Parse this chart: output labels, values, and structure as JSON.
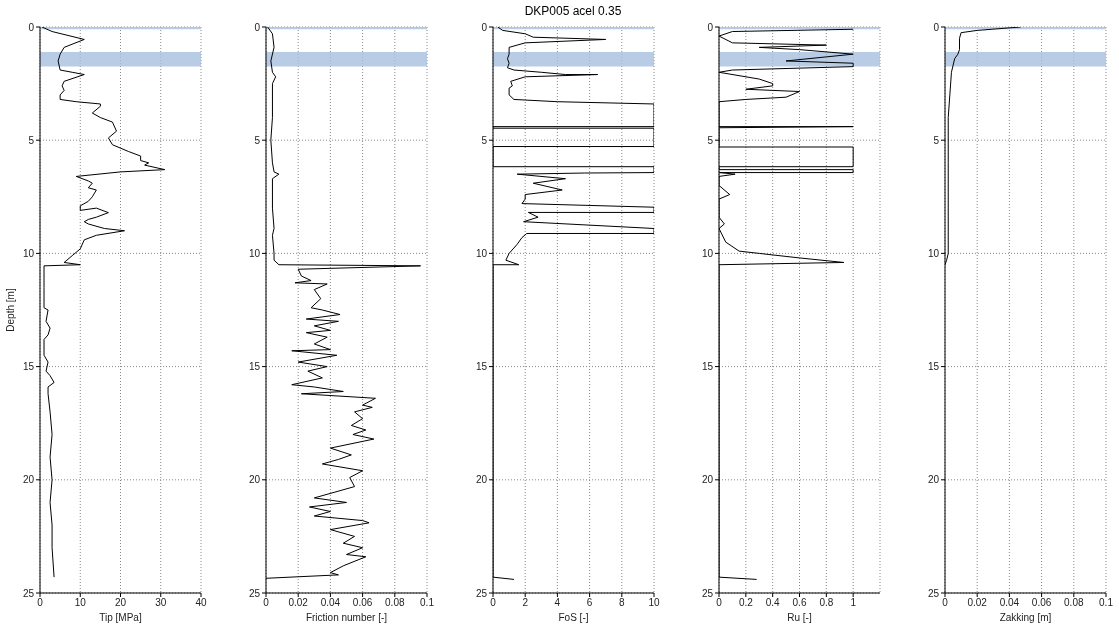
{
  "chart_data": [
    {
      "type": "line",
      "xlabel": "Tip [MPa]",
      "ylabel": "Depth [m]",
      "xlim": [
        0,
        40
      ],
      "xticks": [
        0,
        10,
        20,
        30,
        40
      ],
      "ylim": [
        25,
        0
      ],
      "yticks": [
        0,
        5,
        10,
        15,
        20,
        25
      ],
      "grid": true,
      "bands": [
        {
          "axis": "y",
          "from": 0,
          "to": 0.1,
          "color": "#a7bfdf"
        },
        {
          "axis": "y",
          "from": 1.1,
          "to": 1.75,
          "color": "#a7bfdf"
        }
      ],
      "series": [
        {
          "color": "#000000",
          "x": [
            0.5,
            3,
            11,
            6,
            5,
            4.5,
            5,
            8,
            11,
            6,
            5.5,
            6,
            5,
            5,
            9,
            15,
            15,
            13,
            15,
            18,
            19,
            17,
            18,
            22,
            25,
            25,
            27,
            26,
            31,
            20,
            9,
            12,
            13,
            12,
            14,
            13,
            12,
            10,
            10,
            14,
            17,
            14,
            12,
            11,
            12,
            16,
            21,
            14,
            11,
            10,
            8,
            6,
            10,
            1,
            1,
            1,
            2,
            1.5,
            2.5,
            2,
            1,
            1,
            2,
            1.5,
            2.5,
            3.5,
            2,
            2,
            2.5,
            3,
            2.5,
            3,
            2.5,
            3,
            3,
            3.5
          ],
          "values": [
            0,
            0.2,
            0.55,
            0.9,
            1.2,
            1.5,
            1.9,
            2,
            2.1,
            2.4,
            2.6,
            2.8,
            3,
            3.2,
            3.3,
            3.4,
            3.5,
            3.8,
            4,
            4.2,
            4.6,
            4.9,
            5.2,
            5.5,
            5.7,
            5.9,
            6,
            6.1,
            6.3,
            6.4,
            6.6,
            6.8,
            6.9,
            7.1,
            7.2,
            7.5,
            7.7,
            7.9,
            8.1,
            8,
            8.2,
            8.4,
            8.5,
            8.6,
            8.7,
            8.9,
            9,
            9.2,
            9.4,
            9.8,
            10.1,
            10.4,
            10.5,
            10.55,
            11.5,
            12.4,
            12.5,
            13,
            13.3,
            13.6,
            13.8,
            14.5,
            14.8,
            15.2,
            15.4,
            15.7,
            15.9,
            16.2,
            17,
            18,
            19,
            20,
            21,
            22,
            23,
            24.3
          ]
        }
      ]
    },
    {
      "type": "line",
      "xlabel": "Friction number [-]",
      "xlim": [
        0,
        0.1
      ],
      "xticks": [
        0,
        0.02,
        0.04,
        0.06,
        0.08,
        0.1
      ],
      "ylim": [
        25,
        0
      ],
      "yticks": [
        0,
        5,
        10,
        15,
        20,
        25
      ],
      "grid": true,
      "bands": [
        {
          "axis": "y",
          "from": 0,
          "to": 0.1,
          "color": "#a7bfdf"
        },
        {
          "axis": "y",
          "from": 1.1,
          "to": 1.75,
          "color": "#a7bfdf"
        }
      ],
      "series": [
        {
          "color": "#000000",
          "x": [
            0.001,
            0.004,
            0.005,
            0.003,
            0.004,
            0.006,
            0.004,
            0.004,
            0.003,
            0.004,
            0.005,
            0.008,
            0.004,
            0.004,
            0.005,
            0.004,
            0.005,
            0.005,
            0.008,
            0.096,
            0.02,
            0.022,
            0.028,
            0.018,
            0.038,
            0.03,
            0.034,
            0.028,
            0.035,
            0.046,
            0.025,
            0.045,
            0.03,
            0.04,
            0.025,
            0.038,
            0.03,
            0.04,
            0.016,
            0.044,
            0.02,
            0.038,
            0.026,
            0.035,
            0.016,
            0.03,
            0.048,
            0.022,
            0.068,
            0.06,
            0.066,
            0.055,
            0.06,
            0.053,
            0.062,
            0.054,
            0.067,
            0.04,
            0.053,
            0.045,
            0.035,
            0.06,
            0.052,
            0.055,
            0.03,
            0.05,
            0.027,
            0.04,
            0.03,
            0.06,
            0.064,
            0.04,
            0.055,
            0.048,
            0.06,
            0.05,
            0.062,
            0.048,
            0.04,
            0.045,
            0
          ],
          "values": [
            0,
            0.3,
            0.9,
            1.5,
            2,
            2.2,
            2.5,
            4,
            5,
            6,
            6.4,
            6.5,
            6.7,
            8,
            8.9,
            9.2,
            10,
            10.3,
            10.5,
            10.55,
            10.7,
            11,
            11.2,
            11.3,
            11.35,
            11.6,
            12,
            12.4,
            12.5,
            12.7,
            12.9,
            13,
            13.2,
            13.4,
            13.5,
            13.7,
            14,
            14.25,
            14.3,
            14.5,
            14.8,
            15,
            15.2,
            15.5,
            15.8,
            15.9,
            16.1,
            16.2,
            16.4,
            16.7,
            16.8,
            17,
            17.3,
            17.6,
            17.8,
            18,
            18.2,
            18.6,
            18.9,
            19.1,
            19.3,
            19.6,
            19.9,
            20.3,
            20.8,
            21,
            21.2,
            21.4,
            21.6,
            21.8,
            21.9,
            22.2,
            22.5,
            22.8,
            23,
            23.3,
            23.4,
            23.8,
            24.1,
            24.2,
            24.35
          ]
        }
      ]
    },
    {
      "type": "line",
      "title": "DKP005 acel 0.35",
      "xlabel": "FoS [-]",
      "xlim": [
        0,
        10
      ],
      "xticks": [
        0,
        2,
        4,
        6,
        8,
        10
      ],
      "ylim": [
        25,
        0
      ],
      "yticks": [
        0,
        5,
        10,
        15,
        20,
        25
      ],
      "grid": true,
      "bands": [
        {
          "axis": "y",
          "from": 0,
          "to": 0.1,
          "color": "#a7bfdf"
        },
        {
          "axis": "y",
          "from": 1.1,
          "to": 1.75,
          "color": "#a7bfdf"
        }
      ],
      "series": [
        {
          "color": "#000000",
          "x": [
            0.3,
            0.6,
            2,
            2.5,
            7,
            2,
            1,
            1,
            0.9,
            1,
            0.9,
            1.3,
            3,
            4.5,
            6.5,
            2,
            1.1,
            1.2,
            1,
            1,
            1.3,
            4,
            10,
            10,
            0,
            0,
            10,
            10,
            0,
            0,
            10,
            10,
            5.7,
            1.5,
            4.5,
            2.5,
            4.3,
            2,
            2,
            1.8,
            10,
            10,
            2.2,
            2.8,
            1.9,
            10,
            10,
            2.1,
            1.8,
            1.5,
            1,
            0.8,
            1.6,
            0,
            null,
            0,
            1.3
          ],
          "values": [
            0,
            0.15,
            0.3,
            0.45,
            0.55,
            0.7,
            0.9,
            1.2,
            1.4,
            1.6,
            1.8,
            1.9,
            2,
            2.1,
            2.1,
            2.2,
            2.4,
            2.6,
            2.7,
            3,
            3.2,
            3.3,
            3.4,
            4.4,
            4.4,
            4.47,
            4.47,
            5.28,
            5.28,
            6.17,
            6.17,
            6.43,
            6.45,
            6.5,
            6.7,
            6.9,
            7.2,
            7.4,
            7.6,
            7.8,
            7.96,
            8.19,
            8.19,
            8.4,
            8.6,
            8.9,
            9.12,
            9.12,
            9.3,
            9.6,
            10,
            10.3,
            10.5,
            10.5,
            null,
            24.3,
            24.4
          ]
        }
      ]
    },
    {
      "type": "line",
      "xlabel": "Ru [-]",
      "xlim": [
        0,
        1.2
      ],
      "xticks": [
        0,
        0.2,
        0.4,
        0.6,
        0.8,
        1
      ],
      "ylim": [
        25,
        0
      ],
      "yticks": [
        0,
        5,
        10,
        15,
        20,
        25
      ],
      "grid": true,
      "bands": [
        {
          "axis": "y",
          "from": 0,
          "to": 0.1,
          "color": "#a7bfdf"
        },
        {
          "axis": "y",
          "from": 1.1,
          "to": 1.75,
          "color": "#a7bfdf"
        }
      ],
      "series": [
        {
          "color": "#000000",
          "x": [
            1,
            0.1,
            0,
            0.1,
            0.8,
            0.3,
            0.6,
            1,
            0.5,
            1,
            1,
            0.1,
            0,
            0.3,
            0.4,
            0.4,
            0.2,
            0.6,
            0.5,
            0.2,
            0,
            0,
            1,
            0,
            0,
            1,
            1,
            0,
            0,
            1,
            1,
            0,
            0.12,
            0,
            0,
            0.08,
            0,
            0,
            0.04,
            0,
            0.05,
            0.15,
            0.3,
            0.6,
            0.93,
            0,
            null,
            0,
            0.28
          ],
          "values": [
            0.1,
            0.2,
            0.4,
            0.7,
            0.8,
            0.9,
            1,
            1.2,
            1.5,
            1.6,
            1.75,
            1.9,
            2,
            2.3,
            2.5,
            2.6,
            2.75,
            2.85,
            3.1,
            3.2,
            3.3,
            4.4,
            4.4,
            4.45,
            5.3,
            5.3,
            6.17,
            6.17,
            6.3,
            6.3,
            6.43,
            6.43,
            6.5,
            6.6,
            7,
            7.4,
            7.6,
            8.4,
            8.7,
            8.9,
            9.5,
            9.9,
            10,
            10.2,
            10.4,
            10.5,
            null,
            24.3,
            24.4
          ]
        }
      ]
    },
    {
      "type": "line",
      "xlabel": "Zakking [m]",
      "xlim": [
        0,
        0.1
      ],
      "xticks": [
        0,
        0.02,
        0.04,
        0.06,
        0.08,
        0.1
      ],
      "ylim": [
        25,
        0
      ],
      "yticks": [
        0,
        5,
        10,
        15,
        20,
        25
      ],
      "grid": true,
      "bands": [
        {
          "axis": "y",
          "from": 0,
          "to": 0.1,
          "color": "#a7bfdf"
        },
        {
          "axis": "y",
          "from": 1.1,
          "to": 1.75,
          "color": "#a7bfdf"
        }
      ],
      "series": [
        {
          "color": "#000000",
          "x": [
            0.047,
            0.02,
            0.01,
            0.009,
            0.009,
            0.008,
            0.006,
            0.004,
            0.003,
            0.002,
            0.002,
            0.002,
            0.001,
            0
          ],
          "values": [
            0,
            0.15,
            0.25,
            0.5,
            1,
            1.2,
            1.4,
            2,
            3,
            4,
            6,
            10,
            10.3,
            10.5
          ]
        }
      ]
    }
  ]
}
